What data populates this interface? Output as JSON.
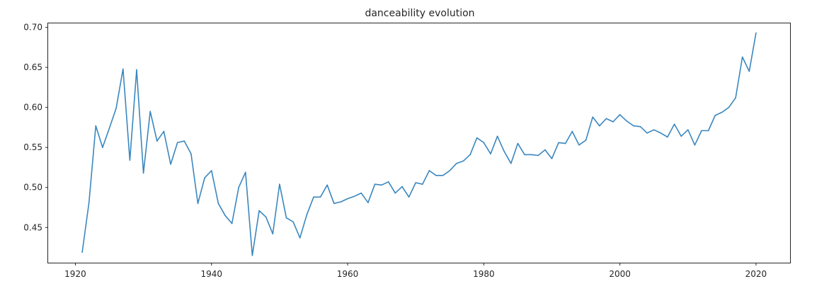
{
  "chart_data": {
    "type": "line",
    "title": "danceability evolution",
    "xlabel": "",
    "ylabel": "",
    "xlim": [
      1916,
      2025
    ],
    "ylim": [
      0.406,
      0.705
    ],
    "x_ticks": [
      1920,
      1940,
      1960,
      1980,
      2000,
      2020
    ],
    "y_ticks": [
      0.45,
      0.5,
      0.55,
      0.6,
      0.65,
      0.7
    ],
    "y_tick_labels": [
      "0.45",
      "0.50",
      "0.55",
      "0.60",
      "0.65",
      "0.70"
    ],
    "grid": false,
    "colors": {
      "line": "#3a87bf",
      "axis": "#262626"
    },
    "series": [
      {
        "x": [
          1921,
          1922,
          1923,
          1924,
          1925,
          1926,
          1927,
          1928,
          1929,
          1930,
          1931,
          1932,
          1933,
          1934,
          1935,
          1936,
          1937,
          1938,
          1939,
          1940,
          1941,
          1942,
          1943,
          1944,
          1945,
          1946,
          1947,
          1948,
          1949,
          1950,
          1951,
          1952,
          1953,
          1954,
          1955,
          1956,
          1957,
          1958,
          1959,
          1960,
          1961,
          1962,
          1963,
          1964,
          1965,
          1966,
          1967,
          1968,
          1969,
          1970,
          1971,
          1972,
          1973,
          1974,
          1975,
          1976,
          1977,
          1978,
          1979,
          1980,
          1981,
          1982,
          1983,
          1984,
          1985,
          1986,
          1987,
          1988,
          1989,
          1990,
          1991,
          1992,
          1993,
          1994,
          1995,
          1996,
          1997,
          1998,
          1999,
          2000,
          2001,
          2002,
          2003,
          2004,
          2005,
          2006,
          2007,
          2008,
          2009,
          2010,
          2011,
          2012,
          2013,
          2014,
          2015,
          2016,
          2017,
          2018,
          2019,
          2020
        ],
        "y": [
          0.419,
          0.481,
          0.577,
          0.55,
          0.574,
          0.599,
          0.648,
          0.534,
          0.647,
          0.518,
          0.595,
          0.558,
          0.57,
          0.529,
          0.556,
          0.558,
          0.542,
          0.48,
          0.512,
          0.521,
          0.48,
          0.465,
          0.455,
          0.5,
          0.519,
          0.415,
          0.471,
          0.463,
          0.442,
          0.504,
          0.462,
          0.457,
          0.437,
          0.466,
          0.488,
          0.488,
          0.503,
          0.48,
          0.482,
          0.486,
          0.489,
          0.493,
          0.481,
          0.504,
          0.503,
          0.507,
          0.493,
          0.501,
          0.488,
          0.506,
          0.504,
          0.521,
          0.515,
          0.515,
          0.521,
          0.53,
          0.533,
          0.541,
          0.562,
          0.556,
          0.542,
          0.564,
          0.545,
          0.53,
          0.555,
          0.541,
          0.541,
          0.54,
          0.547,
          0.536,
          0.556,
          0.555,
          0.57,
          0.553,
          0.559,
          0.588,
          0.577,
          0.586,
          0.582,
          0.591,
          0.583,
          0.577,
          0.576,
          0.568,
          0.572,
          0.568,
          0.563,
          0.579,
          0.564,
          0.572,
          0.553,
          0.571,
          0.571,
          0.59,
          0.594,
          0.6,
          0.612,
          0.663,
          0.645,
          0.693
        ]
      }
    ]
  }
}
